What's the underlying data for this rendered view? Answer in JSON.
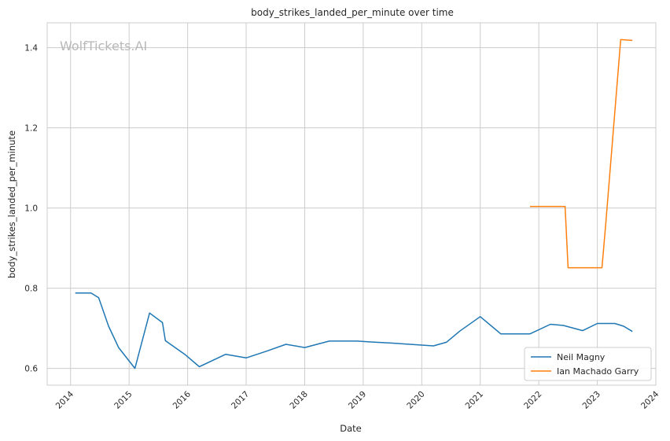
{
  "chart_data": {
    "type": "line",
    "title": "body_strikes_landed_per_minute over time",
    "xlabel": "Date",
    "ylabel": "body_strikes_landed_per_minute",
    "watermark": "WolfTickets.AI",
    "xlim": [
      2013.6,
      2024.0
    ],
    "ylim": [
      0.558,
      1.462
    ],
    "xticks": [
      2014,
      2015,
      2016,
      2017,
      2018,
      2019,
      2020,
      2021,
      2022,
      2023,
      2024
    ],
    "xtick_labels": [
      "2014",
      "2015",
      "2016",
      "2017",
      "2018",
      "2019",
      "2020",
      "2021",
      "2022",
      "2023",
      "2024"
    ],
    "yticks": [
      0.6,
      0.8,
      1.0,
      1.2,
      1.4
    ],
    "ytick_labels": [
      "0.6",
      "0.8",
      "1.0",
      "1.2",
      "1.4"
    ],
    "grid": true,
    "legend_position": "bottom-right",
    "series": [
      {
        "name": "Neil Magny",
        "color": "#1f77b4",
        "x": [
          2014.08,
          2014.35,
          2014.48,
          2014.65,
          2014.82,
          2015.1,
          2015.35,
          2015.57,
          2015.62,
          2015.95,
          2016.2,
          2016.65,
          2017.0,
          2017.35,
          2017.68,
          2018.0,
          2018.42,
          2018.9,
          2019.1,
          2019.5,
          2019.9,
          2020.2,
          2020.42,
          2020.65,
          2021.0,
          2021.35,
          2021.85,
          2022.2,
          2022.42,
          2022.75,
          2023.0,
          2023.3,
          2023.45,
          2023.6
        ],
        "y": [
          0.788,
          0.788,
          0.776,
          0.705,
          0.652,
          0.6,
          0.738,
          0.714,
          0.669,
          0.635,
          0.604,
          0.635,
          0.626,
          0.643,
          0.66,
          0.652,
          0.668,
          0.668,
          0.666,
          0.663,
          0.659,
          0.656,
          0.665,
          0.693,
          0.729,
          0.686,
          0.686,
          0.71,
          0.707,
          0.694,
          0.712,
          0.712,
          0.705,
          0.692
        ]
      },
      {
        "name": "Ian Machado Garry",
        "color": "#ff7f0e",
        "x": [
          2021.85,
          2022.0,
          2022.45,
          2022.5,
          2022.6,
          2023.0,
          2023.08,
          2023.15,
          2023.4,
          2023.6
        ],
        "y": [
          1.004,
          1.004,
          1.004,
          0.851,
          0.851,
          0.851,
          0.851,
          0.97,
          1.42,
          1.418
        ]
      }
    ]
  }
}
